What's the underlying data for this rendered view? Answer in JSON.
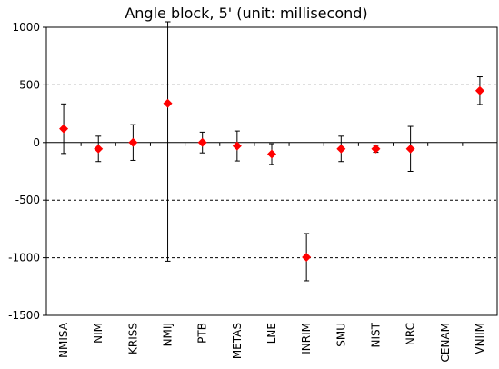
{
  "chart_data": {
    "type": "scatter",
    "title": "Angle block, 5' (unit: millisecond)",
    "xlabel": "",
    "ylabel": "",
    "ylim": [
      -1500,
      1000
    ],
    "yticks": [
      1000,
      500,
      0,
      -500,
      -1000,
      -1500
    ],
    "gridlines_dashed_at": [
      500,
      -500,
      -1000
    ],
    "marker_color": "#ff0000",
    "categories": [
      "NMISA",
      "NIM",
      "KRISS",
      "NMIJ",
      "PTB",
      "METAS",
      "LNE",
      "INRIM",
      "SMU",
      "NIST",
      "NRC",
      "CENAM",
      "VNIIM"
    ],
    "series": [
      {
        "values": [
          120,
          -55,
          0,
          340,
          0,
          -30,
          -100,
          -995,
          -55,
          -55,
          -55,
          null,
          450
        ],
        "error": [
          215,
          110,
          155,
          1370,
          90,
          130,
          90,
          205,
          110,
          30,
          195,
          null,
          120
        ]
      }
    ]
  }
}
